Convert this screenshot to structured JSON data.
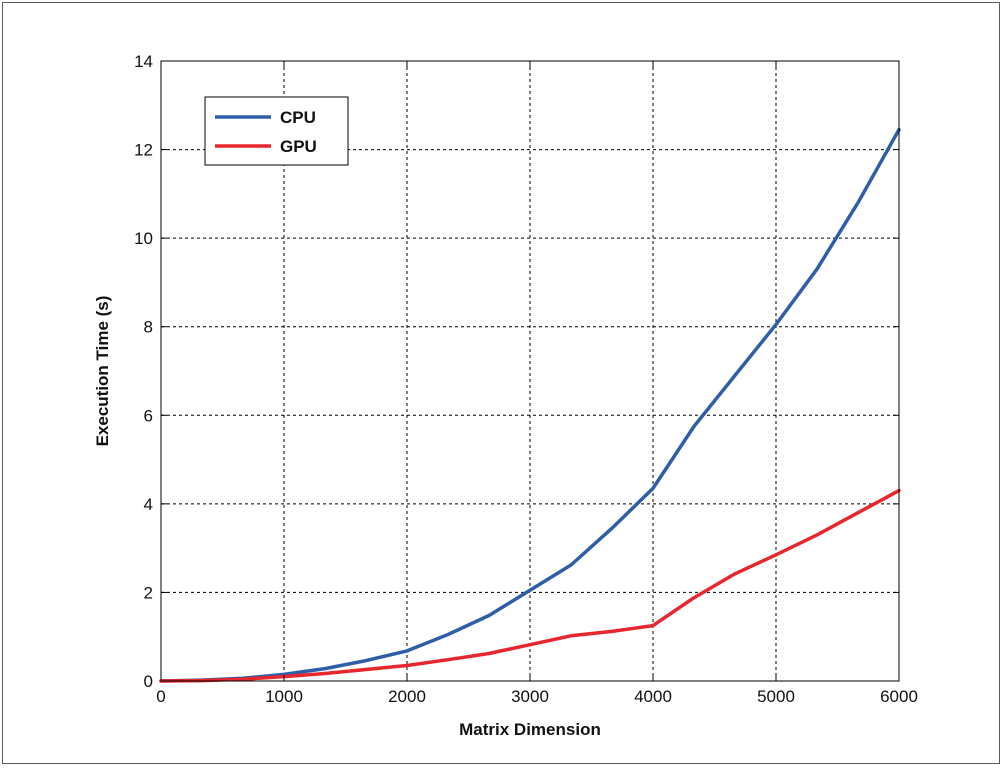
{
  "chart_data": {
    "type": "line",
    "title": "",
    "xlabel": "Matrix Dimension",
    "ylabel": "Execution Time (s)",
    "xlim": [
      0,
      6000
    ],
    "ylim": [
      0,
      14
    ],
    "xticks": [
      0,
      1000,
      2000,
      3000,
      4000,
      5000,
      6000
    ],
    "yticks": [
      0,
      2,
      4,
      6,
      8,
      10,
      12,
      14
    ],
    "grid": true,
    "legend_position": "top-left",
    "series": [
      {
        "name": "CPU",
        "color": "#2e5ea8",
        "x": [
          0,
          333,
          667,
          1000,
          1333,
          1667,
          2000,
          2333,
          2667,
          3000,
          3333,
          3667,
          4000,
          4333,
          4667,
          5000,
          5333,
          5667,
          6000
        ],
        "y": [
          0.0,
          0.02,
          0.06,
          0.15,
          0.28,
          0.46,
          0.68,
          1.05,
          1.48,
          2.05,
          2.62,
          3.45,
          4.35,
          5.75,
          6.9,
          8.05,
          9.3,
          10.8,
          12.45
        ]
      },
      {
        "name": "GPU",
        "color": "#e8262d",
        "x": [
          0,
          333,
          667,
          1000,
          1333,
          1667,
          2000,
          2333,
          2667,
          3000,
          3333,
          3667,
          4000,
          4333,
          4667,
          5000,
          5333,
          5667,
          6000
        ],
        "y": [
          0.0,
          0.01,
          0.04,
          0.1,
          0.17,
          0.26,
          0.35,
          0.48,
          0.62,
          0.82,
          1.02,
          1.12,
          1.25,
          1.88,
          2.42,
          2.85,
          3.3,
          3.8,
          4.3
        ]
      }
    ]
  }
}
